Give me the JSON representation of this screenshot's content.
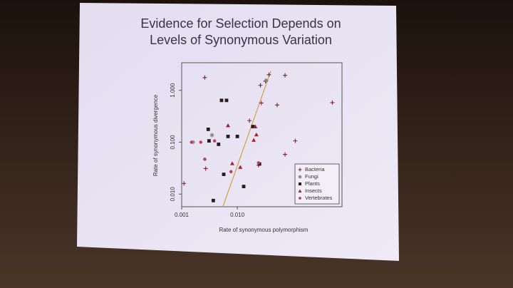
{
  "chart_data": {
    "type": "scatter",
    "title": [
      "Evidence for Selection Depends on",
      "Levels of Synonymous Variation"
    ],
    "xlabel": "Rate of synonymous polymorphism",
    "ylabel": "Rate of synonymous divergence",
    "xscale": "log",
    "yscale": "log",
    "xlim": [
      0.001,
      0.76
    ],
    "ylim": [
      0.0057,
      3.4
    ],
    "xticks": [
      {
        "value": 0.001,
        "label": "0.001"
      },
      {
        "value": 0.01,
        "label": "0.010"
      }
    ],
    "yticks": [
      {
        "value": 0.01,
        "label": "0.010"
      },
      {
        "value": 0.1,
        "label": "0.100"
      },
      {
        "value": 1,
        "label": "1.000"
      }
    ],
    "legend": "lower right",
    "series": [
      {
        "name": "Bacteria",
        "marker": "plus",
        "color": "#7a2434",
        "x": [
          0.0026,
          0.0011,
          0.0027,
          0.0165,
          0.026,
          0.032,
          0.037,
          0.072,
          0.027,
          0.052,
          0.51,
          0.11,
          0.072,
          0.024
        ],
        "values": [
          1.76,
          0.016,
          0.031,
          0.26,
          1.25,
          1.5,
          2.0,
          1.94,
          0.57,
          0.52,
          0.58,
          0.106,
          0.058,
          0.036
        ]
      },
      {
        "name": "Fungi",
        "marker": "asterisk",
        "color": "#8a7f8f",
        "x": [
          0.033,
          0.0035,
          0.0016
        ],
        "values": [
          1.55,
          0.137,
          0.1
        ]
      },
      {
        "name": "Plants",
        "marker": "square",
        "color": "#2b1b1e",
        "x": [
          0.0052,
          0.0064,
          0.003,
          0.0068,
          0.01,
          0.0031,
          0.0046,
          0.019,
          0.0057,
          0.0037,
          0.013,
          0.025
        ],
        "values": [
          0.64,
          0.64,
          0.177,
          0.129,
          0.129,
          0.106,
          0.091,
          0.2,
          0.024,
          0.0075,
          0.014,
          0.038
        ]
      },
      {
        "name": "Insects",
        "marker": "triangle",
        "color": "#a52232",
        "x": [
          0.0068,
          0.021,
          0.022,
          0.0197,
          0.0081,
          0.0113
        ],
        "values": [
          0.21,
          0.2,
          0.14,
          0.11,
          0.039,
          0.033
        ]
      },
      {
        "name": "Vertebrates",
        "marker": "circle",
        "color": "#b8405a",
        "x": [
          0.0015,
          0.0022,
          0.0026,
          0.0077,
          0.024,
          0.0039
        ],
        "values": [
          0.1,
          0.1,
          0.047,
          0.027,
          0.04,
          0.106
        ]
      }
    ],
    "reference_line": {
      "color": "#d4a040",
      "x": [
        0.0055,
        0.04
      ],
      "values": [
        0.0057,
        2.34
      ]
    }
  }
}
